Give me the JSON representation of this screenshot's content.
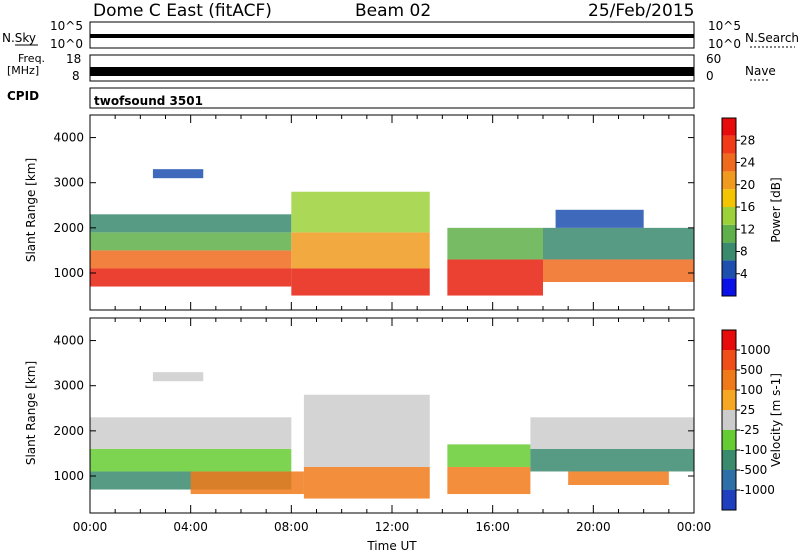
{
  "header": {
    "title_left": "Dome C East (fitACF)",
    "title_center": "Beam 02",
    "title_right": "25/Feb/2015"
  },
  "strip_panels": {
    "nsky_label": "N.Sky",
    "nsky_ticks": [
      "10^5",
      "10^0"
    ],
    "nsearch_label": "N.Search",
    "nsearch_ticks": [
      "10^5",
      "10^0"
    ],
    "freq_label_1": "Freq.",
    "freq_label_2": "[MHz]",
    "freq_ticks": [
      "18",
      "8"
    ],
    "nave_label": "Nave",
    "nave_ticks": [
      "60",
      "0"
    ],
    "cpid_label": "CPID",
    "cpid_value": "twofsound 3501"
  },
  "colors": {
    "frame": "#000000",
    "background": "#ffffff"
  },
  "chart_data": [
    {
      "type": "heatmap",
      "name": "power-panel",
      "ylabel": "Slant Range [km]",
      "xlabel": "",
      "x_range_hours": [
        0,
        24
      ],
      "y_range_km": [
        180,
        4500
      ],
      "y_ticks": [
        1000,
        2000,
        3000,
        4000
      ],
      "colorbar": {
        "label": "Power [dB]",
        "ticks": [
          "4",
          "8",
          "12",
          "16",
          "20",
          "24",
          "28"
        ],
        "colors": [
          "#0a10e8",
          "#1d4fae",
          "#3a8a6e",
          "#5fb04a",
          "#9cd13a",
          "#f5c400",
          "#f09a1f",
          "#f06a1d",
          "#f03a18",
          "#e80b0b"
        ]
      },
      "bands": [
        {
          "x0": 0.0,
          "x1": 8.0,
          "y0": 700,
          "y1": 1100,
          "color": "#e8200e"
        },
        {
          "x0": 0.0,
          "x1": 8.0,
          "y0": 1100,
          "y1": 1500,
          "color": "#f06a1d"
        },
        {
          "x0": 0.0,
          "x1": 8.0,
          "y0": 1500,
          "y1": 1900,
          "color": "#5fb04a"
        },
        {
          "x0": 0.0,
          "x1": 8.0,
          "y0": 1900,
          "y1": 2300,
          "color": "#3a8a6e"
        },
        {
          "x0": 8.0,
          "x1": 13.5,
          "y0": 500,
          "y1": 1100,
          "color": "#e8200e"
        },
        {
          "x0": 8.0,
          "x1": 13.5,
          "y0": 1100,
          "y1": 1900,
          "color": "#f09a1f"
        },
        {
          "x0": 8.0,
          "x1": 13.5,
          "y0": 1900,
          "y1": 2800,
          "color": "#9cd13a"
        },
        {
          "x0": 14.2,
          "x1": 18.0,
          "y0": 500,
          "y1": 1300,
          "color": "#e8200e"
        },
        {
          "x0": 14.2,
          "x1": 18.0,
          "y0": 1300,
          "y1": 2000,
          "color": "#5fb04a"
        },
        {
          "x0": 18.0,
          "x1": 24.0,
          "y0": 800,
          "y1": 1300,
          "color": "#f06a1d"
        },
        {
          "x0": 18.0,
          "x1": 24.0,
          "y0": 1300,
          "y1": 2000,
          "color": "#3a8a6e"
        },
        {
          "x0": 18.5,
          "x1": 22.0,
          "y0": 2000,
          "y1": 2400,
          "color": "#1d4fae"
        },
        {
          "x0": 2.5,
          "x1": 4.5,
          "y0": 3100,
          "y1": 3300,
          "color": "#1d4fae"
        }
      ]
    },
    {
      "type": "heatmap",
      "name": "velocity-panel",
      "ylabel": "Slant Range [km]",
      "xlabel": "Time UT",
      "x_range_hours": [
        0,
        24
      ],
      "x_ticks": [
        "00:00",
        "04:00",
        "08:00",
        "12:00",
        "16:00",
        "20:00",
        "00:00"
      ],
      "y_range_km": [
        180,
        4500
      ],
      "y_ticks": [
        1000,
        2000,
        3000,
        4000
      ],
      "colorbar": {
        "label": "Velocity [m s-1]",
        "ticks": [
          "1000",
          "500",
          "100",
          "25",
          "-25",
          "-100",
          "-500",
          "-1000"
        ],
        "colors": [
          "#1f3fbf",
          "#2f6fa8",
          "#3a8a6e",
          "#66cc33",
          "#cccccc",
          "#f5a623",
          "#f07a1a",
          "#f04e18",
          "#e80b0b"
        ]
      },
      "bands": [
        {
          "x0": 0.0,
          "x1": 8.0,
          "y0": 700,
          "y1": 1100,
          "color": "#3a8a6e"
        },
        {
          "x0": 0.0,
          "x1": 8.0,
          "y0": 1100,
          "y1": 1600,
          "color": "#66cc33"
        },
        {
          "x0": 0.0,
          "x1": 8.0,
          "y0": 1600,
          "y1": 2300,
          "color": "#cccccc"
        },
        {
          "x0": 4.0,
          "x1": 8.5,
          "y0": 600,
          "y1": 1100,
          "color": "#f07a1a"
        },
        {
          "x0": 8.5,
          "x1": 13.5,
          "y0": 500,
          "y1": 1200,
          "color": "#f07a1a"
        },
        {
          "x0": 8.5,
          "x1": 13.5,
          "y0": 1200,
          "y1": 2800,
          "color": "#cccccc"
        },
        {
          "x0": 14.2,
          "x1": 17.5,
          "y0": 600,
          "y1": 1200,
          "color": "#f07a1a"
        },
        {
          "x0": 14.2,
          "x1": 17.5,
          "y0": 1200,
          "y1": 1700,
          "color": "#66cc33"
        },
        {
          "x0": 17.5,
          "x1": 24.0,
          "y0": 1100,
          "y1": 1600,
          "color": "#3a8a6e"
        },
        {
          "x0": 17.5,
          "x1": 24.0,
          "y0": 1600,
          "y1": 2300,
          "color": "#cccccc"
        },
        {
          "x0": 19.0,
          "x1": 23.0,
          "y0": 800,
          "y1": 1100,
          "color": "#f07a1a"
        },
        {
          "x0": 2.5,
          "x1": 4.5,
          "y0": 3100,
          "y1": 3300,
          "color": "#cccccc"
        }
      ]
    }
  ]
}
